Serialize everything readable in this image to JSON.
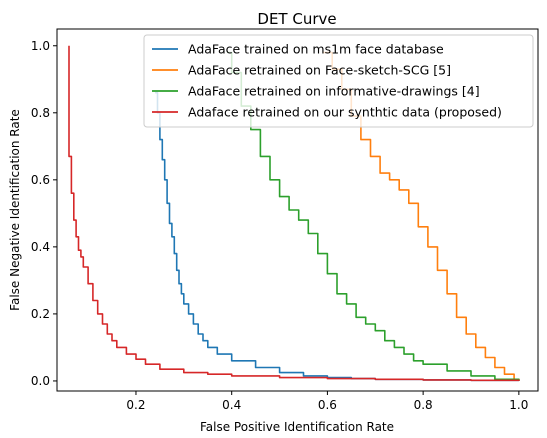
{
  "chart_data": {
    "type": "line",
    "title": "DET Curve",
    "xlabel": "False Positive Identification Rate",
    "ylabel": "False Negative Identification Rate",
    "xlim": [
      0.035,
      1.04
    ],
    "ylim": [
      -0.03,
      1.05
    ],
    "xticks": [
      "0.2",
      "0.4",
      "0.6",
      "0.8",
      "1.0"
    ],
    "xtick_values": [
      0.2,
      0.4,
      0.6,
      0.8,
      1.0
    ],
    "yticks": [
      "0.0",
      "0.2",
      "0.4",
      "0.6",
      "0.8",
      "1.0"
    ],
    "ytick_values": [
      0.0,
      0.2,
      0.4,
      0.6,
      0.8,
      1.0
    ],
    "grid": false,
    "legend_position": "top-right",
    "series": [
      {
        "name": "AdaFace trained on ms1m face database",
        "color": "#1f77b4",
        "x": [
          0.24,
          0.245,
          0.25,
          0.255,
          0.26,
          0.265,
          0.27,
          0.275,
          0.28,
          0.285,
          0.29,
          0.295,
          0.3,
          0.31,
          0.32,
          0.33,
          0.34,
          0.35,
          0.37,
          0.4,
          0.45,
          0.5,
          0.55,
          0.6,
          0.65,
          0.7,
          0.8,
          0.9,
          1.0
        ],
        "y": [
          0.86,
          0.8,
          0.72,
          0.66,
          0.6,
          0.53,
          0.47,
          0.43,
          0.38,
          0.33,
          0.29,
          0.26,
          0.23,
          0.2,
          0.17,
          0.14,
          0.12,
          0.1,
          0.08,
          0.06,
          0.04,
          0.025,
          0.015,
          0.01,
          0.007,
          0.005,
          0.003,
          0.002,
          0.0
        ]
      },
      {
        "name": "AdaFace retrained on Face-sketch-SCG [5]",
        "color": "#ff7f0e",
        "x": [
          0.59,
          0.61,
          0.63,
          0.65,
          0.67,
          0.69,
          0.71,
          0.73,
          0.75,
          0.77,
          0.79,
          0.81,
          0.83,
          0.85,
          0.87,
          0.89,
          0.91,
          0.93,
          0.95,
          0.97,
          0.99,
          1.0
        ],
        "y": [
          0.98,
          0.93,
          0.87,
          0.79,
          0.72,
          0.67,
          0.62,
          0.6,
          0.57,
          0.53,
          0.46,
          0.4,
          0.33,
          0.26,
          0.19,
          0.14,
          0.1,
          0.07,
          0.04,
          0.02,
          0.005,
          0.0
        ]
      },
      {
        "name": "AdaFace retrained on informative-drawings [4]",
        "color": "#2ca02c",
        "x": [
          0.39,
          0.4,
          0.42,
          0.44,
          0.46,
          0.48,
          0.5,
          0.52,
          0.54,
          0.56,
          0.58,
          0.6,
          0.62,
          0.64,
          0.66,
          0.68,
          0.7,
          0.72,
          0.74,
          0.76,
          0.78,
          0.8,
          0.85,
          0.9,
          0.95,
          1.0
        ],
        "y": [
          0.98,
          0.92,
          0.82,
          0.75,
          0.67,
          0.6,
          0.55,
          0.51,
          0.48,
          0.44,
          0.38,
          0.32,
          0.26,
          0.23,
          0.19,
          0.17,
          0.15,
          0.12,
          0.1,
          0.08,
          0.06,
          0.05,
          0.03,
          0.015,
          0.005,
          0.0
        ]
      },
      {
        "name": "Adaface retrained on our synthtic data (proposed)",
        "color": "#d62728",
        "x": [
          0.06,
          0.06,
          0.065,
          0.07,
          0.075,
          0.08,
          0.085,
          0.09,
          0.1,
          0.11,
          0.12,
          0.13,
          0.14,
          0.15,
          0.16,
          0.18,
          0.2,
          0.22,
          0.25,
          0.3,
          0.35,
          0.4,
          0.5,
          0.6,
          0.7,
          0.8,
          0.9,
          1.0
        ],
        "y": [
          1.0,
          0.67,
          0.56,
          0.48,
          0.43,
          0.39,
          0.37,
          0.34,
          0.29,
          0.24,
          0.2,
          0.17,
          0.14,
          0.12,
          0.1,
          0.08,
          0.065,
          0.05,
          0.035,
          0.025,
          0.02,
          0.015,
          0.01,
          0.007,
          0.005,
          0.003,
          0.002,
          0.0
        ]
      }
    ]
  }
}
